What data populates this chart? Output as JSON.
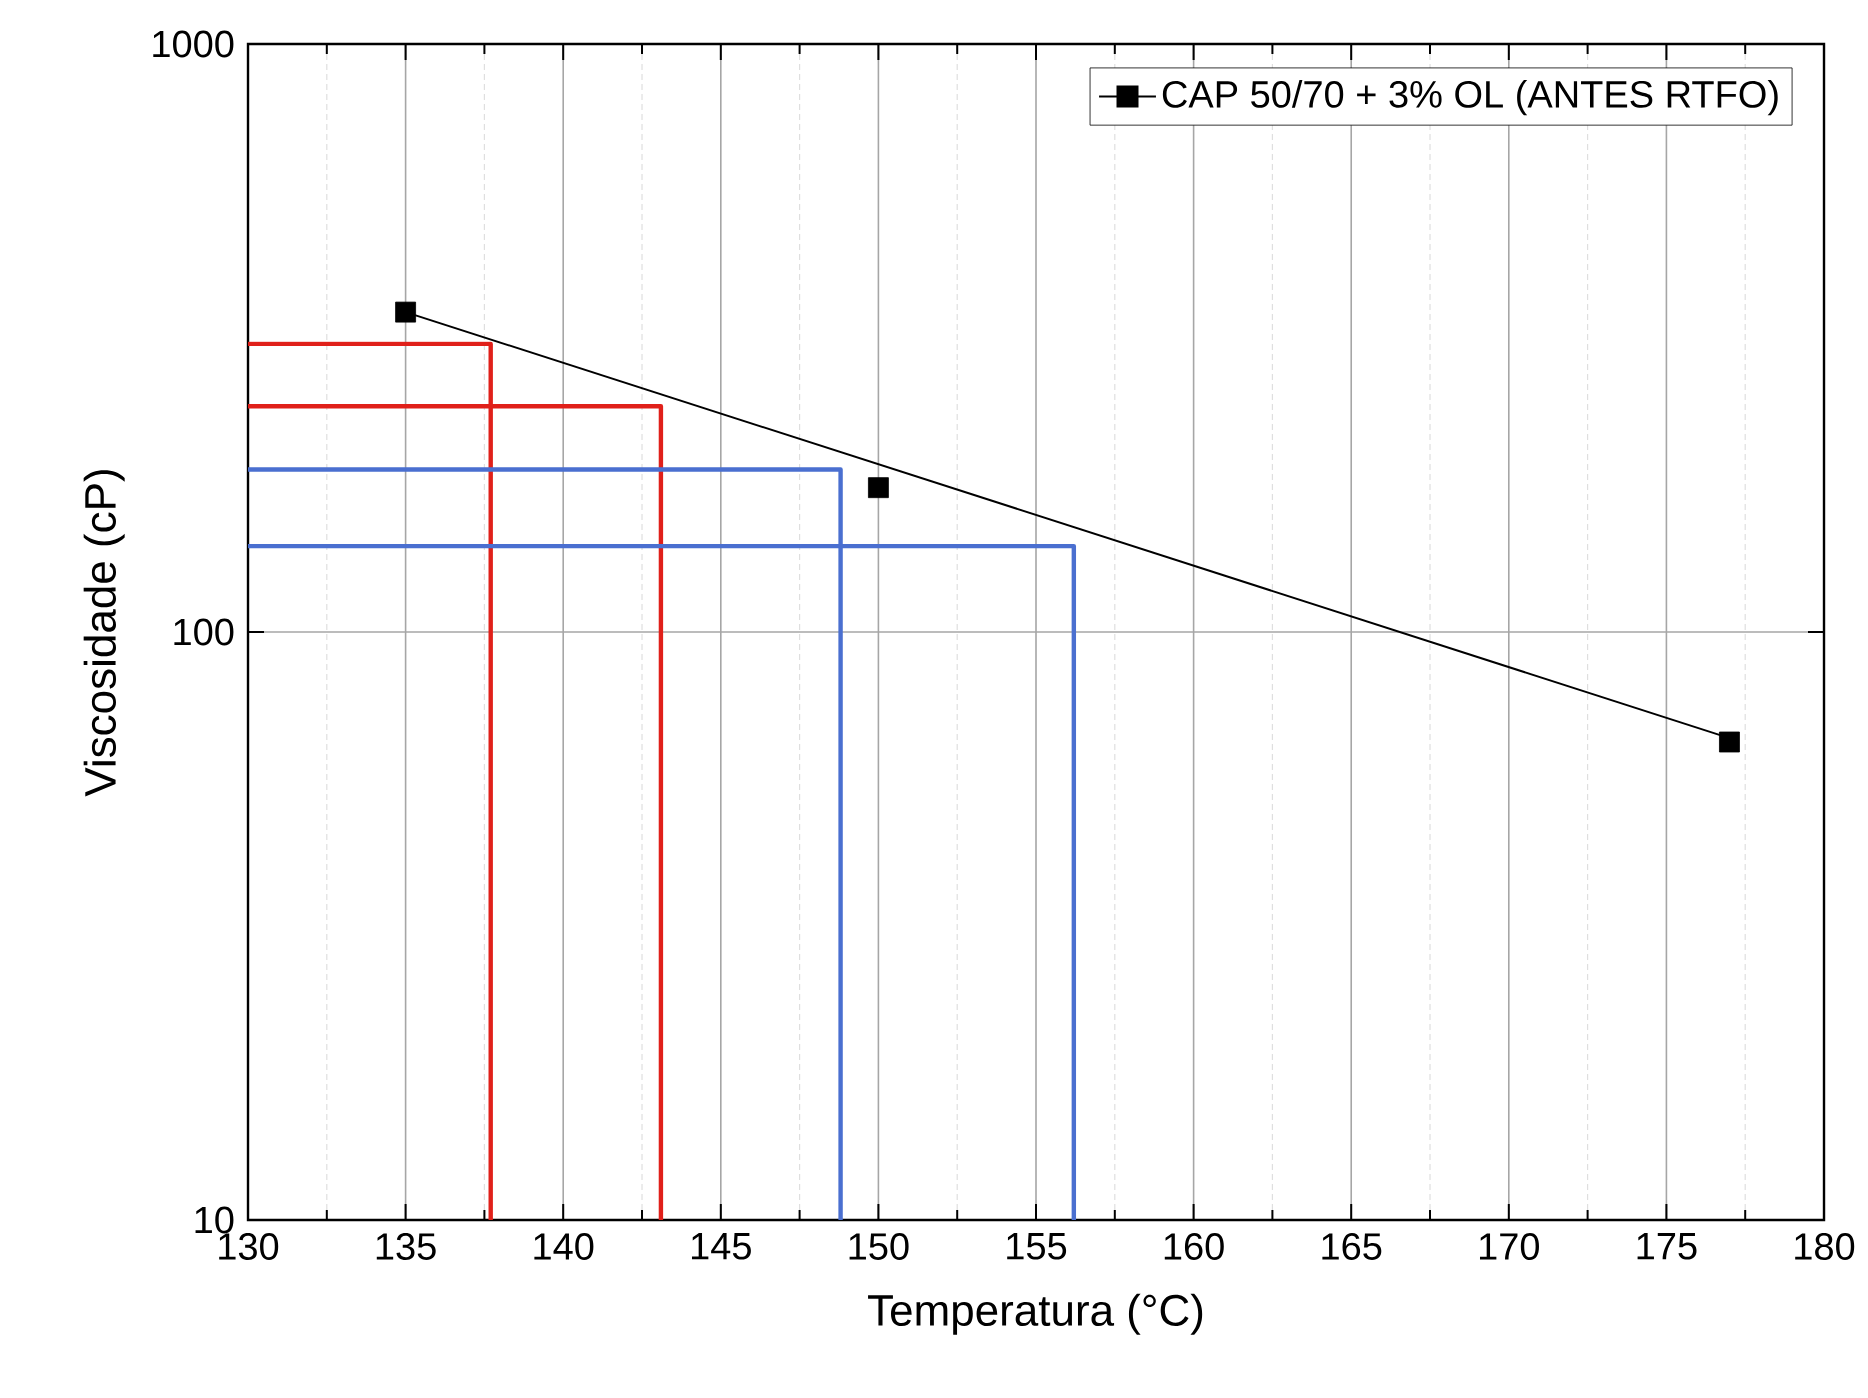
{
  "chart_data": {
    "type": "scatter",
    "xlabel": "Temperatura (°C)",
    "ylabel": "Viscosidade (cP)",
    "xlim": [
      130,
      180
    ],
    "ylim": [
      10,
      1000
    ],
    "xticks": [
      130,
      135,
      140,
      145,
      150,
      155,
      160,
      165,
      170,
      175,
      180
    ],
    "yticks": [
      10,
      100,
      1000
    ],
    "log": "y",
    "grid": true,
    "legend": "top right",
    "line_style": "solid",
    "series": [
      {
        "name": "CAP 50/70  + 3% OL (ANTES RTFO)",
        "marker": "square",
        "color": "#000000",
        "x": [
          135,
          150,
          177
        ],
        "values": [
          350,
          176,
          65
        ]
      },
      {
        "type": "line",
        "color": "#000000",
        "x": [
          135,
          177
        ],
        "values": [
          350,
          66
        ]
      },
      {
        "type": "line",
        "color": "#e0201a",
        "x": [
          130,
          137.7,
          137.7
        ],
        "values": [
          309,
          309,
          10
        ]
      },
      {
        "type": "line",
        "color": "#e0201a",
        "x": [
          130,
          143.1,
          143.1
        ],
        "values": [
          242,
          242,
          10
        ]
      },
      {
        "type": "line",
        "color": "#4a6fd0",
        "x": [
          130,
          148.8,
          148.8
        ],
        "values": [
          189,
          189,
          10
        ]
      },
      {
        "type": "line",
        "color": "#4a6fd0",
        "x": [
          130,
          156.2,
          156.2
        ],
        "values": [
          140,
          140,
          10
        ]
      }
    ]
  }
}
